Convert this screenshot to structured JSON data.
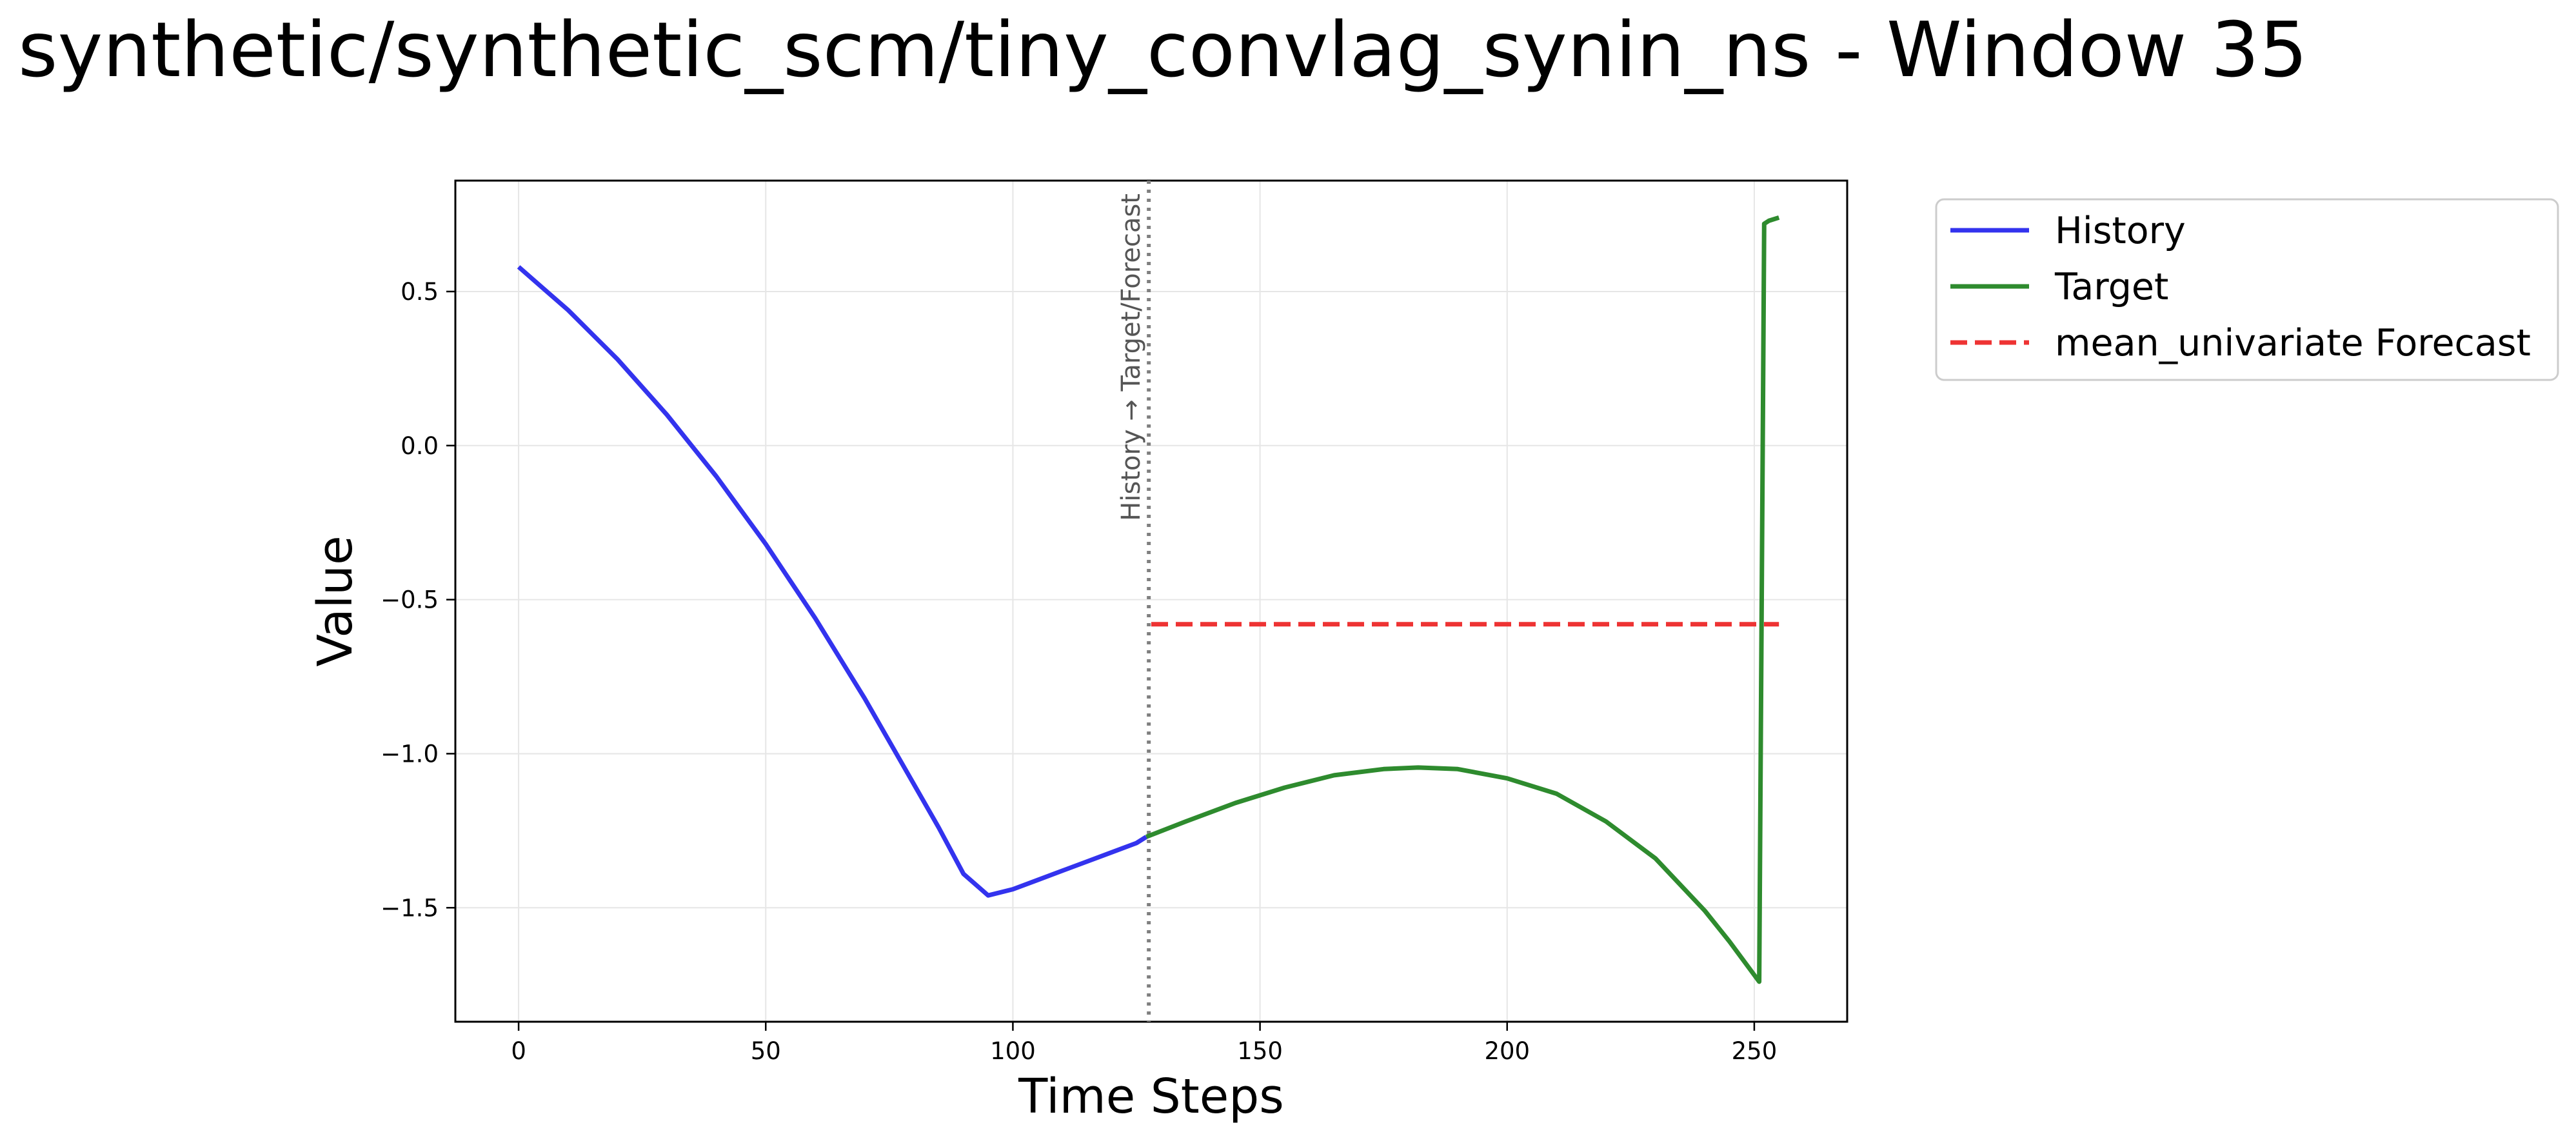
{
  "title": "synthetic/synthetic_scm/tiny_convlag_synin_ns - Window 35",
  "chart_data": {
    "type": "line",
    "xlabel": "Time Steps",
    "ylabel": "Value",
    "xlim": [
      -12.8,
      268.8
    ],
    "ylim": [
      -1.87,
      0.86
    ],
    "xticks": [
      0,
      50,
      100,
      150,
      200,
      250
    ],
    "xtick_labels": [
      "0",
      "50",
      "100",
      "150",
      "200",
      "250"
    ],
    "yticks": [
      0.5,
      0.0,
      -0.5,
      -1.0,
      -1.5
    ],
    "ytick_labels": [
      "0.5",
      "0.0",
      "−0.5",
      "−1.0",
      "−1.5"
    ],
    "grid": true,
    "legend_position": "outside-top-right",
    "vline": {
      "x": 127.5,
      "label": "History → Target/Forecast",
      "color": "#808080"
    },
    "series": [
      {
        "name": "History",
        "color": "#3333ee",
        "style": "solid",
        "x": [
          0,
          5,
          10,
          15,
          20,
          25,
          30,
          35,
          40,
          45,
          50,
          55,
          60,
          65,
          70,
          75,
          80,
          85,
          90,
          95,
          100,
          105,
          110,
          115,
          120,
          125,
          127
        ],
        "y": [
          0.58,
          0.51,
          0.44,
          0.36,
          0.28,
          0.19,
          0.1,
          0.0,
          -0.1,
          -0.21,
          -0.32,
          -0.44,
          -0.56,
          -0.69,
          -0.82,
          -0.96,
          -1.1,
          -1.24,
          -1.39,
          -1.46,
          -1.44,
          -1.41,
          -1.38,
          -1.35,
          -1.32,
          -1.29,
          -1.27
        ]
      },
      {
        "name": "Target",
        "color": "#2e8b2e",
        "style": "solid",
        "x": [
          127,
          135,
          145,
          155,
          165,
          175,
          182,
          190,
          200,
          210,
          220,
          230,
          240,
          245,
          251,
          252,
          253,
          255
        ],
        "y": [
          -1.27,
          -1.22,
          -1.16,
          -1.11,
          -1.07,
          -1.05,
          -1.045,
          -1.05,
          -1.08,
          -1.13,
          -1.22,
          -1.34,
          -1.51,
          -1.61,
          -1.74,
          0.72,
          0.73,
          0.74
        ]
      },
      {
        "name": "mean_univariate Forecast",
        "color": "#ee3333",
        "style": "dashed",
        "x": [
          128,
          255
        ],
        "y": [
          -0.58,
          -0.58
        ]
      }
    ]
  }
}
